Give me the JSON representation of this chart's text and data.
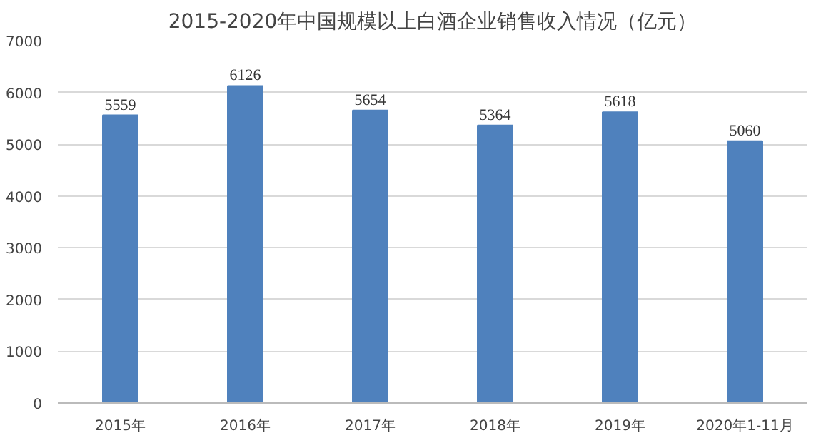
{
  "chart_data": {
    "type": "bar",
    "title": "2015-2020年中国规模以上白酒企业销售收入情况（亿元）",
    "categories": [
      "2015年",
      "2016年",
      "2017年",
      "2018年",
      "2019年",
      "2020年1-11月"
    ],
    "values": [
      5559,
      6126,
      5654,
      5364,
      5618,
      5060
    ],
    "color": "#4f81bd",
    "ylim": [
      0,
      7000
    ],
    "yticks": [
      0,
      1000,
      2000,
      3000,
      4000,
      5000,
      6000,
      7000
    ],
    "grid": "y",
    "data_labels": true
  }
}
